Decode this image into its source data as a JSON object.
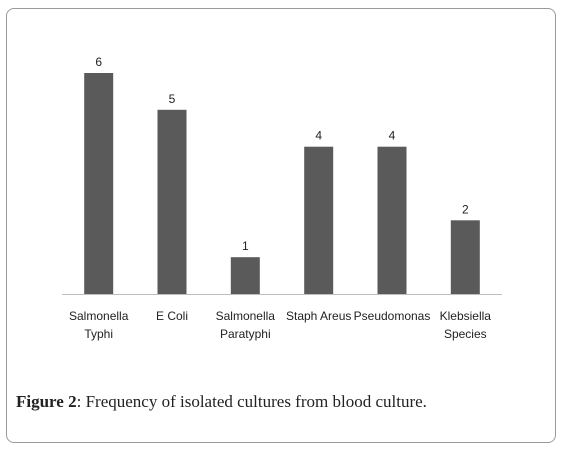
{
  "chart_data": {
    "type": "bar",
    "categories": [
      [
        "Salmonella",
        "Typhi"
      ],
      [
        "E Coli"
      ],
      [
        "Salmonella",
        "Paratyphi"
      ],
      [
        "Staph Areus"
      ],
      [
        "Pseudomonas"
      ],
      [
        "Klebsiella",
        "Species"
      ]
    ],
    "values": [
      6,
      5,
      1,
      4,
      4,
      2
    ],
    "ylim": [
      0,
      6
    ],
    "bar_color": "#5a5a5a",
    "axis_color": "#bdbdbd",
    "grid": false,
    "legend": "none"
  },
  "caption": {
    "label": "Figure 2",
    "text": ": Frequency of isolated cultures from blood culture."
  }
}
